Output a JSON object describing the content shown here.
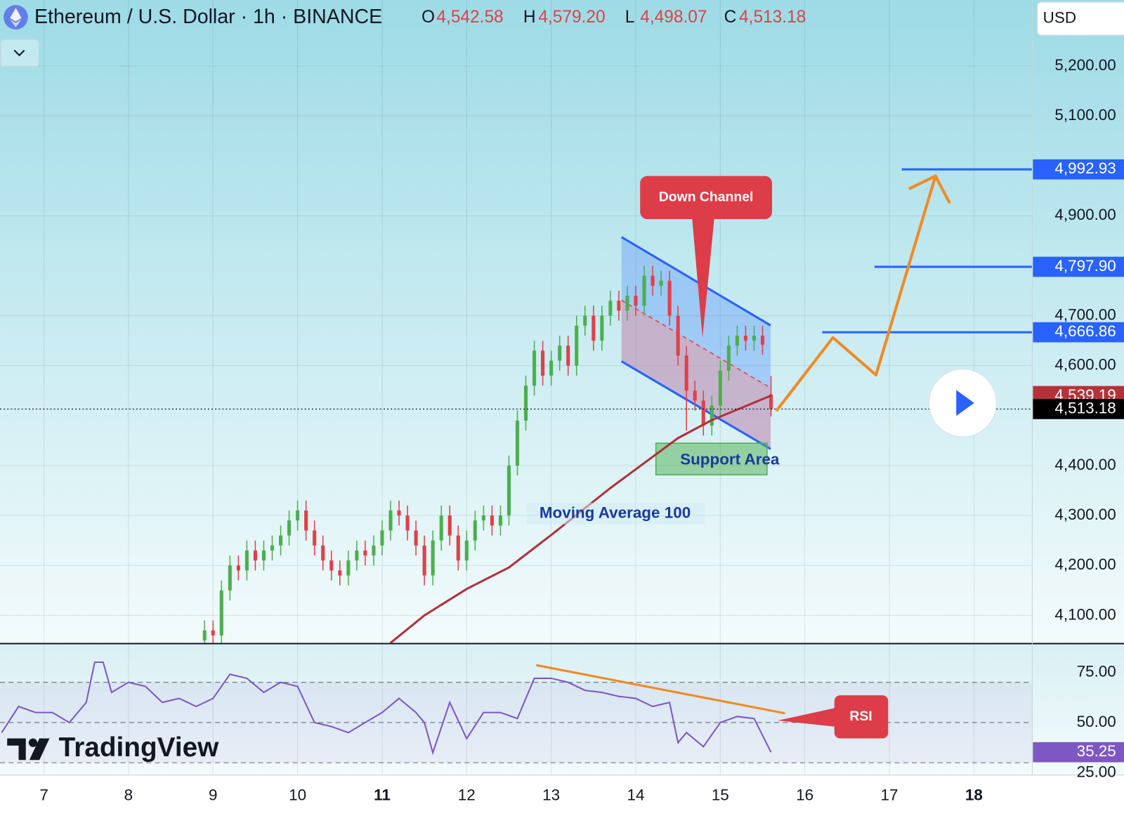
{
  "chart_data": [
    {
      "type": "candlestick",
      "title": "Ethereum / U.S. Dollar · 1h · BINANCE",
      "ohlc": [
        {
          "label": "O",
          "text": "4,542.58"
        },
        {
          "label": "H",
          "text": "4,579.20"
        },
        {
          "label": "L",
          "text": "4,498.07"
        },
        {
          "label": "C",
          "text": "4,513.18"
        }
      ],
      "currency": "USD",
      "x": [
        8.9,
        9.0,
        9.1,
        9.2,
        9.3,
        9.4,
        9.5,
        9.6,
        9.7,
        9.8,
        9.9,
        10.0,
        10.1,
        10.2,
        10.3,
        10.4,
        10.5,
        10.6,
        10.7,
        10.8,
        10.9,
        11.0,
        11.1,
        11.2,
        11.3,
        11.4,
        11.5,
        11.6,
        11.7,
        11.8,
        11.9,
        12.0,
        12.1,
        12.2,
        12.3,
        12.4,
        12.5,
        12.6,
        12.7,
        12.8,
        12.9,
        13.0,
        13.1,
        13.2,
        13.3,
        13.4,
        13.5,
        13.6,
        13.7,
        13.8,
        13.9,
        14.0,
        14.1,
        14.2,
        14.3,
        14.4,
        14.5,
        14.6,
        14.7,
        14.8,
        14.9,
        15.0,
        15.1,
        15.2,
        15.3,
        15.4,
        15.5,
        15.6
      ],
      "open": [
        4050,
        4070,
        4060,
        4150,
        4200,
        4190,
        4230,
        4210,
        4230,
        4240,
        4260,
        4290,
        4310,
        4270,
        4240,
        4210,
        4190,
        4180,
        4210,
        4230,
        4220,
        4240,
        4270,
        4310,
        4300,
        4270,
        4240,
        4180,
        4250,
        4300,
        4260,
        4210,
        4250,
        4290,
        4300,
        4280,
        4300,
        4400,
        4490,
        4560,
        4630,
        4580,
        4610,
        4640,
        4600,
        4680,
        4700,
        4650,
        4700,
        4730,
        4710,
        4740,
        4720,
        4780,
        4760,
        4770,
        4700,
        4620,
        4550,
        4530,
        4480,
        4520,
        4590,
        4640,
        4660,
        4650,
        4660,
        4542.58
      ],
      "high": [
        4090,
        4090,
        4170,
        4220,
        4220,
        4250,
        4250,
        4250,
        4260,
        4280,
        4310,
        4330,
        4330,
        4290,
        4260,
        4230,
        4210,
        4230,
        4250,
        4250,
        4260,
        4290,
        4330,
        4330,
        4320,
        4290,
        4260,
        4270,
        4320,
        4320,
        4280,
        4270,
        4310,
        4320,
        4320,
        4320,
        4420,
        4510,
        4580,
        4650,
        4650,
        4630,
        4660,
        4660,
        4700,
        4720,
        4720,
        4720,
        4750,
        4750,
        4760,
        4760,
        4800,
        4800,
        4790,
        4790,
        4720,
        4640,
        4570,
        4550,
        4540,
        4610,
        4660,
        4680,
        4680,
        4680,
        4680,
        4579.2
      ],
      "low": [
        4030,
        4040,
        4040,
        4130,
        4170,
        4170,
        4190,
        4190,
        4210,
        4220,
        4240,
        4270,
        4250,
        4220,
        4190,
        4170,
        4160,
        4160,
        4190,
        4200,
        4200,
        4220,
        4250,
        4280,
        4250,
        4220,
        4160,
        4160,
        4230,
        4240,
        4190,
        4190,
        4230,
        4270,
        4260,
        4260,
        4280,
        4380,
        4470,
        4540,
        4560,
        4560,
        4590,
        4580,
        4580,
        4660,
        4630,
        4630,
        4680,
        4690,
        4690,
        4700,
        4700,
        4740,
        4740,
        4680,
        4600,
        4470,
        4510,
        4460,
        4460,
        4500,
        4570,
        4620,
        4630,
        4630,
        4622,
        4498.07
      ],
      "close": [
        4070,
        4060,
        4150,
        4200,
        4190,
        4230,
        4210,
        4230,
        4240,
        4260,
        4290,
        4310,
        4270,
        4240,
        4210,
        4190,
        4180,
        4210,
        4230,
        4220,
        4240,
        4270,
        4310,
        4300,
        4270,
        4240,
        4180,
        4250,
        4300,
        4260,
        4210,
        4250,
        4290,
        4300,
        4280,
        4300,
        4400,
        4490,
        4560,
        4630,
        4580,
        4610,
        4640,
        4600,
        4680,
        4700,
        4650,
        4700,
        4730,
        4710,
        4740,
        4720,
        4780,
        4760,
        4770,
        4700,
        4620,
        4550,
        4530,
        4480,
        4520,
        4590,
        4640,
        4660,
        4650,
        4660,
        4642,
        4513.18
      ],
      "up_color": "#4caf50",
      "down_color": "#e0404a",
      "xlim": [
        6.48,
        18.69
      ],
      "xticks": [
        7,
        8,
        9,
        10,
        11,
        12,
        13,
        14,
        15,
        16,
        17,
        18
      ],
      "bold_xticks": [
        11,
        18
      ],
      "ylim": [
        4045,
        5332
      ],
      "yticks": [
        {
          "value": 5200,
          "label": "5,200.00"
        },
        {
          "value": 5100,
          "label": "5,100.00"
        },
        {
          "value": 4900,
          "label": "4,900.00"
        },
        {
          "value": 4700,
          "label": "4,700.00"
        },
        {
          "value": 4600,
          "label": "4,600.00"
        },
        {
          "value": 4400,
          "label": "4,400.00"
        },
        {
          "value": 4300,
          "label": "4,300.00"
        },
        {
          "value": 4200,
          "label": "4,200.00"
        },
        {
          "value": 4100,
          "label": "4,100.00"
        }
      ],
      "grid": true,
      "moving_average": {
        "color": "#b0313a",
        "x": [
          11.1,
          11.5,
          12.0,
          12.5,
          13.0,
          13.7,
          14.5,
          14.9,
          15.6
        ],
        "values": [
          4045,
          4100,
          4153,
          4196,
          4261,
          4355,
          4455,
          4491,
          4540
        ]
      },
      "price_labels": [
        {
          "value": 4992.93,
          "label": "4,992.93",
          "color": "#2962ff"
        },
        {
          "value": 4797.9,
          "label": "4,797.90",
          "color": "#2962ff"
        },
        {
          "value": 4666.86,
          "label": "4,666.86",
          "color": "#2962ff"
        },
        {
          "value": 4539.19,
          "label": "4,539.19",
          "color": "#b5323a"
        },
        {
          "value": 4513.18,
          "label": "4,513.18",
          "color": "#000000"
        }
      ],
      "annotations": {
        "down_channel": "Down Channel",
        "support_area": "Support Area",
        "moving_average": "Moving Average 100"
      },
      "watermark": "TradingView"
    },
    {
      "type": "line",
      "series": [
        {
          "color": "#7e57c2",
          "x": [
            6.5,
            6.7,
            6.9,
            7.1,
            7.3,
            7.5,
            7.6,
            7.7,
            7.8,
            8.0,
            8.2,
            8.4,
            8.6,
            8.8,
            9.0,
            9.2,
            9.4,
            9.6,
            9.8,
            10.0,
            10.2,
            10.4,
            10.6,
            10.8,
            11.0,
            11.2,
            11.4,
            11.5,
            11.6,
            11.8,
            12.0,
            12.2,
            12.4,
            12.6,
            12.8,
            13.0,
            13.2,
            13.4,
            13.6,
            13.8,
            14.0,
            14.2,
            14.4,
            14.5,
            14.6,
            14.8,
            15.0,
            15.2,
            15.4,
            15.6
          ],
          "values": [
            45,
            58,
            55,
            55,
            50,
            60,
            80,
            80,
            65,
            70,
            68,
            60,
            62,
            58,
            62,
            74,
            72,
            65,
            70,
            68,
            50,
            48,
            45,
            50,
            55,
            62,
            55,
            50,
            35,
            60,
            42,
            55,
            55,
            52,
            72,
            72,
            70,
            66,
            65,
            63,
            62,
            58,
            60,
            40,
            45,
            38,
            50,
            53,
            52,
            35.25
          ]
        }
      ],
      "xlim": [
        6.48,
        18.69
      ],
      "ylim": [
        24.6,
        88.9
      ],
      "yticks": [
        {
          "value": 75,
          "label": "75.00"
        },
        {
          "value": 50,
          "label": "50.00"
        },
        {
          "value": 25,
          "label": "25.00"
        }
      ],
      "levels": [
        70,
        50,
        30
      ],
      "price_label": {
        "value": 35.25,
        "label": "35.25",
        "color": "#7e57c2"
      },
      "annotation": "RSI"
    }
  ]
}
